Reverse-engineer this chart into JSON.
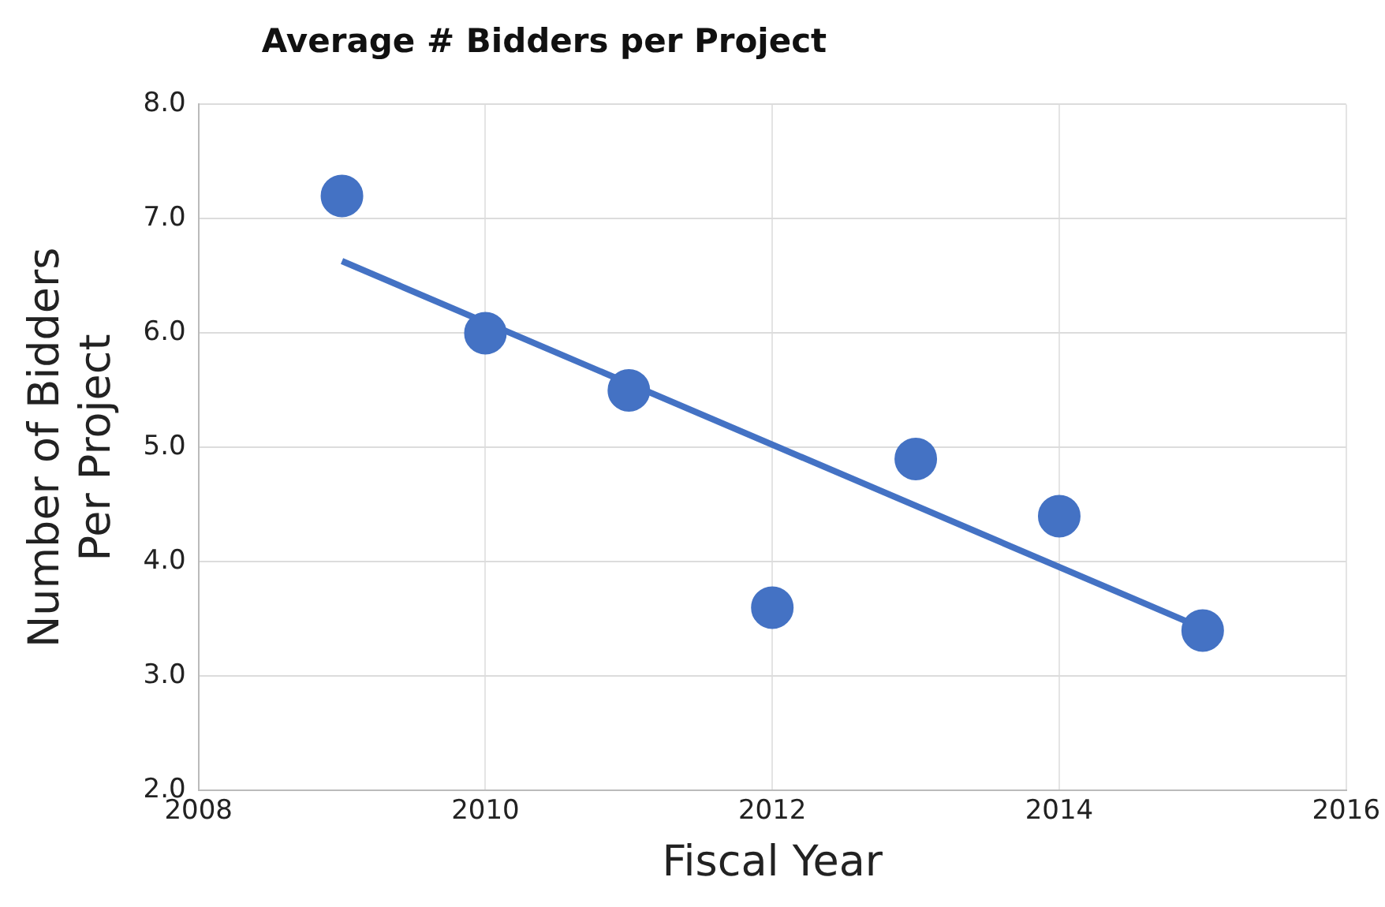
{
  "chart_data": {
    "type": "scatter",
    "title": "Average # Bidders per Project",
    "xlabel": "Fiscal Year",
    "ylabel": "Number of Bidders Per Project",
    "xlim": [
      2008,
      2016
    ],
    "xticks": [
      2008,
      2010,
      2012,
      2014,
      2016
    ],
    "ylim": [
      2.0,
      8.0
    ],
    "yticks": [
      {
        "value": 2,
        "label": "2.0"
      },
      {
        "value": 3,
        "label": "3.0"
      },
      {
        "value": 4,
        "label": "4.0"
      },
      {
        "value": 5,
        "label": "5.0"
      },
      {
        "value": 6,
        "label": "6.0"
      },
      {
        "value": 7,
        "label": "7.0"
      },
      {
        "value": 8,
        "label": "8.0"
      }
    ],
    "grid": true,
    "legend": false,
    "marker": "circle",
    "series": [
      {
        "color": "#4472c4",
        "x": [
          2009,
          2010,
          2011,
          2012,
          2013,
          2014,
          2015
        ],
        "values": [
          7.2,
          6.0,
          5.5,
          3.6,
          4.9,
          4.4,
          3.4
        ]
      },
      {
        "type": "line",
        "color": "#4472c4",
        "x": [
          2009,
          2015
        ],
        "values": [
          6.63,
          3.42
        ],
        "marker": "none",
        "line_style": "solid"
      }
    ]
  }
}
